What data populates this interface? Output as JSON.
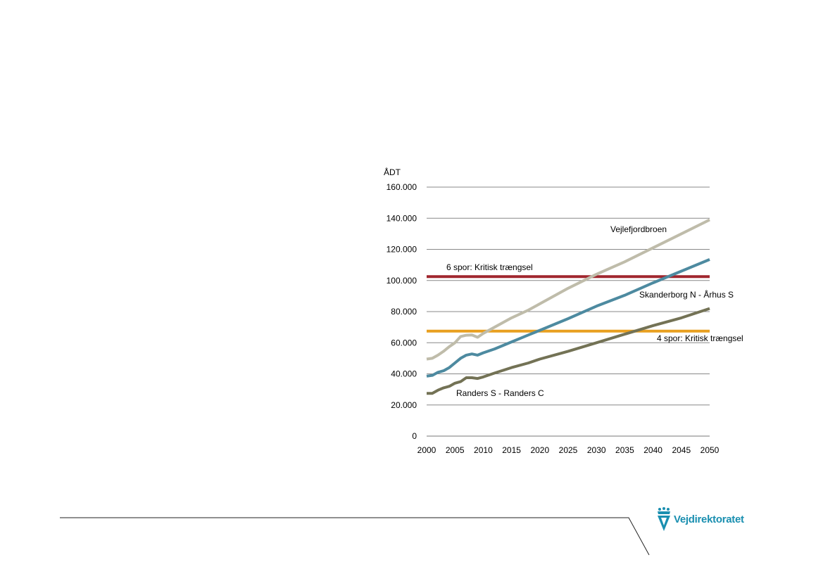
{
  "chart_data": {
    "type": "line",
    "ylabel": "ÅDT",
    "xlim": [
      2000,
      2050
    ],
    "ylim": [
      0,
      160000
    ],
    "x_ticks": [
      "2000",
      "2005",
      "2010",
      "2015",
      "2020",
      "2025",
      "2030",
      "2035",
      "2040",
      "2045",
      "2050"
    ],
    "y_ticks": [
      "0",
      "20.000",
      "40.000",
      "60.000",
      "80.000",
      "100.000",
      "120.000",
      "140.000",
      "160.000"
    ],
    "grid": true,
    "series": [
      {
        "name": "Vejlefjordbroen",
        "color": "#bfbcaa",
        "x": [
          2000,
          2001,
          2002,
          2003,
          2004,
          2005,
          2006,
          2007,
          2008,
          2009,
          2010,
          2012,
          2015,
          2018,
          2020,
          2025,
          2030,
          2035,
          2040,
          2045,
          2050
        ],
        "y": [
          49500,
          50000,
          52000,
          54500,
          57500,
          60000,
          64000,
          64800,
          65000,
          63500,
          66000,
          70000,
          76000,
          81000,
          85000,
          95000,
          104000,
          112000,
          121000,
          130000,
          139000
        ]
      },
      {
        "name": "Skanderborg N - Århus S",
        "color": "#4d8aa0",
        "x": [
          2000,
          2001,
          2002,
          2003,
          2004,
          2005,
          2006,
          2007,
          2008,
          2009,
          2010,
          2012,
          2015,
          2018,
          2020,
          2025,
          2030,
          2035,
          2040,
          2045,
          2050
        ],
        "y": [
          38500,
          39000,
          41000,
          42000,
          44000,
          47000,
          50000,
          52000,
          52800,
          52000,
          53500,
          56000,
          60500,
          65000,
          68000,
          75500,
          83500,
          90500,
          98500,
          106000,
          113500
        ]
      },
      {
        "name": "Randers S - Randers C",
        "color": "#737255",
        "x": [
          2000,
          2001,
          2002,
          2003,
          2004,
          2005,
          2006,
          2007,
          2008,
          2009,
          2010,
          2012,
          2015,
          2018,
          2020,
          2025,
          2030,
          2035,
          2040,
          2045,
          2050
        ],
        "y": [
          27500,
          27500,
          29500,
          31000,
          32000,
          34000,
          35000,
          37500,
          37500,
          37000,
          38000,
          40500,
          44000,
          47000,
          49500,
          54500,
          60000,
          65500,
          71000,
          76000,
          82000
        ]
      },
      {
        "name": "6 spor: Kritisk trængsel",
        "color": "#a0262e",
        "x": [
          2000,
          2050
        ],
        "y": [
          102500,
          102500
        ]
      },
      {
        "name": "4 spor: Kritisk trængsel",
        "color": "#e8a020",
        "x": [
          2000,
          2050
        ],
        "y": [
          67500,
          67500
        ]
      }
    ],
    "annotations": [
      {
        "text": "Vejlefjordbroen",
        "series": 0
      },
      {
        "text": "Skanderborg N - Århus S",
        "series": 1
      },
      {
        "text": "Randers S - Randers C",
        "series": 2
      },
      {
        "text": "6 spor: Kritisk trængsel",
        "series": 3
      },
      {
        "text": "4 spor: Kritisk trængsel",
        "series": 4
      }
    ]
  },
  "logo": {
    "text": "Vejdirektoratet",
    "color": "#1a8fb0"
  }
}
